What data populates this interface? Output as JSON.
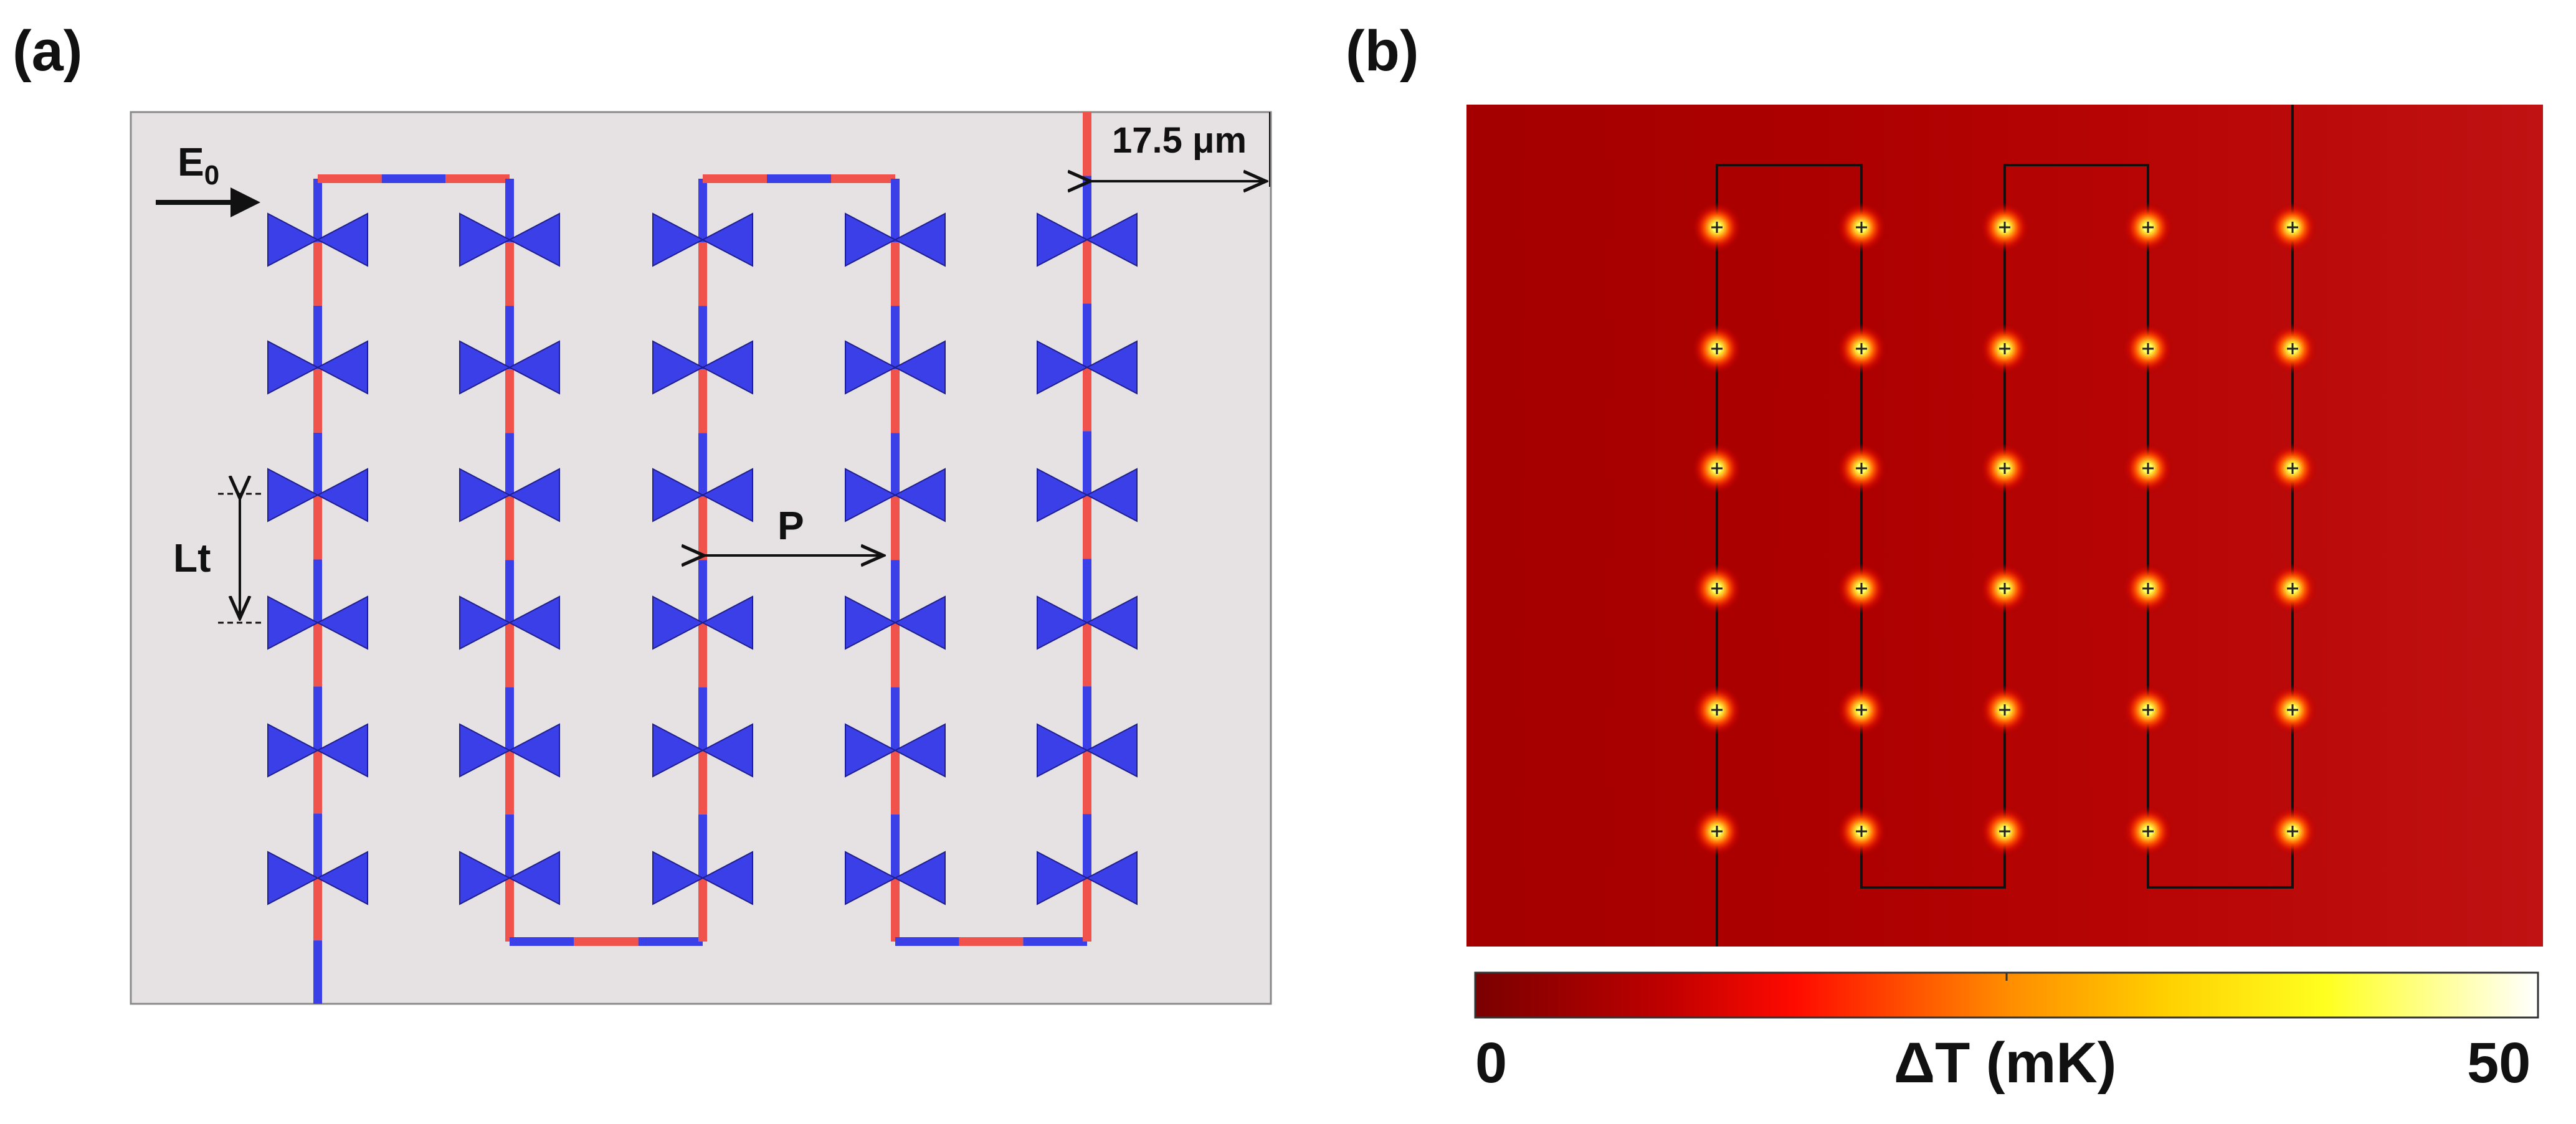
{
  "panels": {
    "a": {
      "label": "(a)",
      "field_label": "E",
      "field_subscript": "0",
      "dimension_label": "17.5 μm",
      "lt_label": "Lt",
      "pitch_label": "P"
    },
    "b": {
      "label": "(b)",
      "colorbar": {
        "min": "0",
        "title": "ΔT (mK)",
        "max": "50"
      }
    }
  },
  "array": {
    "columns": 5,
    "rows": 6
  },
  "colors": {
    "bowtie": "#3b3fe8",
    "line_blue": "#3b3fe8",
    "line_red": "#f0524c",
    "substrate": "#e6e1e3",
    "heat_background": "#b00000",
    "hotspot": "#ffff66"
  }
}
